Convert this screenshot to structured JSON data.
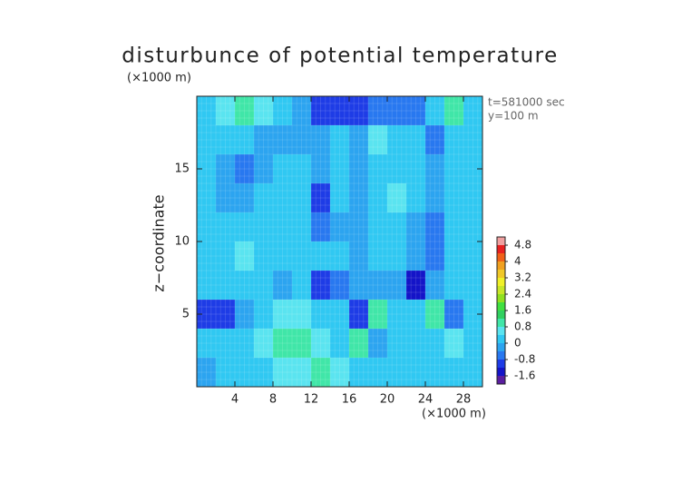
{
  "chart_data": {
    "type": "heatmap",
    "title": "disturbunce of potential temperature",
    "y_unit": "(×1000 m)",
    "x_unit": "(×1000 m)",
    "y_label": "z−coordinate",
    "annotations": [
      "t=581000 sec",
      "y=100 m"
    ],
    "xlim": [
      0,
      30
    ],
    "ylim": [
      0,
      20
    ],
    "xticks": [
      4,
      8,
      12,
      16,
      20,
      24,
      28
    ],
    "yticks": [
      5,
      10,
      15
    ],
    "x": [
      1,
      3,
      5,
      7,
      9,
      11,
      13,
      15,
      17,
      19,
      21,
      23,
      25,
      27,
      29
    ],
    "y": [
      19,
      17,
      15,
      13,
      11,
      9,
      7,
      5,
      3,
      1
    ],
    "z": [
      [
        0.3,
        0.6,
        0.9,
        0.5,
        0.2,
        -0.3,
        -0.9,
        -1.0,
        -0.9,
        -0.7,
        -0.6,
        -0.5,
        0.2,
        0.9,
        0.3
      ],
      [
        0.2,
        0.3,
        0.1,
        -0.3,
        -0.2,
        -0.3,
        -0.4,
        0.1,
        -0.2,
        0.4,
        0.3,
        0.2,
        -0.5,
        0.1,
        0.2
      ],
      [
        0.1,
        -0.2,
        -0.5,
        -0.4,
        0.1,
        0.2,
        -0.3,
        0.1,
        -0.4,
        0.3,
        0.2,
        0.3,
        -0.3,
        0.1,
        0.3
      ],
      [
        0.2,
        -0.3,
        -0.4,
        0.1,
        0.3,
        0.2,
        -0.9,
        0.2,
        -0.3,
        0.2,
        0.4,
        0.2,
        -0.4,
        0.2,
        0.1
      ],
      [
        0.1,
        0.2,
        0.1,
        0.3,
        0.2,
        0.1,
        -0.8,
        -0.1,
        -0.2,
        0.1,
        0.2,
        -0.1,
        -0.5,
        0.1,
        0.2
      ],
      [
        0.2,
        0.3,
        0.4,
        0.2,
        0.1,
        0.3,
        0.2,
        0.1,
        -0.3,
        0.2,
        0.1,
        -0.4,
        -0.6,
        0.1,
        0.2
      ],
      [
        0.1,
        0.2,
        0.3,
        0.1,
        -0.2,
        0.1,
        -0.9,
        -0.6,
        -0.2,
        -0.3,
        -0.3,
        -1.3,
        -0.4,
        0.2,
        0.1
      ],
      [
        -1.1,
        -0.9,
        -0.3,
        0.1,
        0.4,
        0.5,
        0.2,
        0.1,
        -1.2,
        0.8,
        0.3,
        0.1,
        0.9,
        -0.6,
        0.1
      ],
      [
        0.1,
        0.2,
        0.3,
        0.5,
        0.9,
        0.8,
        0.6,
        0.3,
        0.9,
        -0.3,
        0.1,
        0.3,
        0.2,
        0.4,
        0.2
      ],
      [
        -0.2,
        0.1,
        0.2,
        0.3,
        0.5,
        0.4,
        0.9,
        0.6,
        0.3,
        0.2,
        0.1,
        0.3,
        0.2,
        0.1,
        0.2
      ]
    ],
    "colorbar": {
      "levels": [
        -2.0,
        -1.6,
        -1.2,
        -0.8,
        -0.4,
        0,
        0.4,
        0.8,
        1.2,
        1.6,
        2.0,
        2.4,
        2.8,
        3.2,
        3.6,
        4.0,
        4.4,
        4.8,
        5.2
      ],
      "colors": [
        "#5a1ea0",
        "#1414c8",
        "#1e3ce6",
        "#2878f0",
        "#2ca4f0",
        "#30c8f2",
        "#5ae4f0",
        "#40e6a8",
        "#30d060",
        "#40e040",
        "#90e020",
        "#c8e628",
        "#f0f028",
        "#f0c828",
        "#f0a020",
        "#f06018",
        "#e82020",
        "#f0a0a0"
      ],
      "ticks": [
        -1.6,
        -0.8,
        0,
        0.8,
        1.6,
        2.4,
        3.2,
        4,
        4.8
      ]
    }
  }
}
